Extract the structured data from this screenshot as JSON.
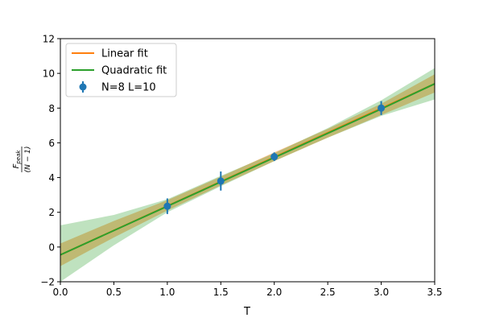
{
  "chart_data": {
    "type": "line",
    "title": "",
    "xlabel": "T",
    "ylabel": {
      "numerator": "F",
      "numerator_sub": "peak",
      "denominator": "(N − 1)"
    },
    "xlim": [
      0.0,
      3.5
    ],
    "ylim": [
      -2,
      12
    ],
    "xticks": [
      0.0,
      0.5,
      1.0,
      1.5,
      2.0,
      2.5,
      3.0,
      3.5
    ],
    "xtick_labels": [
      "0.0",
      "0.5",
      "1.0",
      "1.5",
      "2.0",
      "2.5",
      "3.0",
      "3.5"
    ],
    "yticks": [
      -2,
      0,
      2,
      4,
      6,
      8,
      10,
      12
    ],
    "ytick_labels": [
      "−2",
      "0",
      "2",
      "4",
      "6",
      "8",
      "10",
      "12"
    ],
    "grid": false,
    "legend_position": "top-left",
    "legend": [
      {
        "label": "Linear fit",
        "kind": "line",
        "color": "#ff7f0e"
      },
      {
        "label": "Quadratic fit",
        "kind": "line",
        "color": "#2ca02c"
      },
      {
        "label": "N=8 L=10",
        "kind": "errorbar",
        "color": "#1f77b4"
      }
    ],
    "series": [
      {
        "name": "N=8 L=10",
        "type": "errorbar",
        "color": "#1f77b4",
        "x": [
          1.0,
          1.5,
          2.0,
          3.0
        ],
        "y": [
          2.35,
          3.8,
          5.2,
          8.0
        ],
        "yerr": [
          0.45,
          0.55,
          0.25,
          0.4
        ]
      },
      {
        "name": "Linear fit",
        "type": "line",
        "color": "#ff7f0e",
        "x": [
          0.0,
          3.5
        ],
        "y": [
          -0.45,
          9.4
        ],
        "band": {
          "x": [
            0.0,
            0.5,
            1.0,
            1.5,
            2.0,
            2.5,
            3.0,
            3.5
          ],
          "lower": [
            -1.1,
            0.55,
            2.1,
            3.55,
            4.95,
            6.3,
            7.6,
            8.9
          ],
          "upper": [
            0.2,
            1.5,
            2.7,
            4.05,
            5.45,
            6.8,
            8.25,
            9.95
          ]
        },
        "band_color": "#ff7f0e"
      },
      {
        "name": "Quadratic fit",
        "type": "line",
        "color": "#2ca02c",
        "x": [
          0.0,
          0.5,
          1.0,
          1.5,
          2.0,
          2.5,
          3.0,
          3.5
        ],
        "y": [
          -0.45,
          0.95,
          2.35,
          3.75,
          5.15,
          6.55,
          7.95,
          9.4
        ],
        "band": {
          "x": [
            0.0,
            0.5,
            1.0,
            1.5,
            2.0,
            2.5,
            3.0,
            3.5
          ],
          "lower": [
            -2.0,
            0.1,
            2.0,
            3.5,
            4.95,
            6.3,
            7.55,
            8.5
          ],
          "upper": [
            1.25,
            1.85,
            2.75,
            4.1,
            5.4,
            6.85,
            8.45,
            10.3
          ]
        },
        "band_color": "#2ca02c"
      }
    ]
  }
}
